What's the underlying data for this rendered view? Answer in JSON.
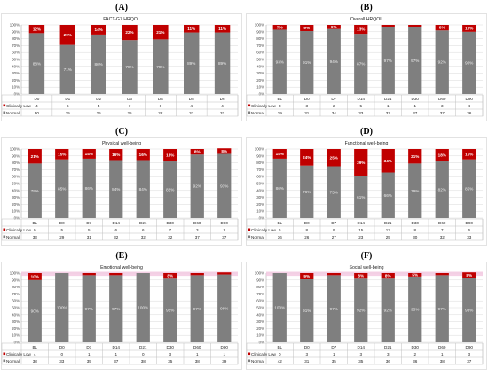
{
  "colors": {
    "clinically_low": "#c00000",
    "normal": "#7f7f7f",
    "highlight": "#f2c5e0"
  },
  "legend": {
    "low": "Clinically Low",
    "normal": "Normal"
  },
  "chart_data": [
    {
      "letter": "(A)",
      "title": "FACT-G7 HRQOL",
      "type": "bar",
      "stacked": true,
      "ylim": [
        0,
        100
      ],
      "y_unit": "%",
      "yticks": [
        "0%",
        "10%",
        "20%",
        "30%",
        "40%",
        "50%",
        "60%",
        "70%",
        "80%",
        "90%",
        "100%"
      ],
      "categories": [
        "D0",
        "D1",
        "D2",
        "D3",
        "D4",
        "D5",
        "D6"
      ],
      "series": [
        {
          "name": "Clinically Low",
          "values": [
            12,
            29,
            14,
            22,
            21,
            11,
            11
          ],
          "labels": [
            "12%",
            "29%",
            "14%",
            "22%",
            "21%",
            "11%",
            "11%"
          ],
          "counts": [
            4,
            6,
            4,
            7,
            6,
            4,
            4
          ]
        },
        {
          "name": "Normal",
          "values": [
            88,
            71,
            86,
            78,
            79,
            89,
            89
          ],
          "labels": [
            "88%",
            "71%",
            "86%",
            "78%",
            "79%",
            "89%",
            "89%"
          ],
          "counts": [
            30,
            15,
            25,
            25,
            22,
            31,
            32
          ]
        }
      ]
    },
    {
      "letter": "(B)",
      "title": "Overall HRQOL",
      "type": "bar",
      "stacked": true,
      "ylim": [
        0,
        100
      ],
      "y_unit": "%",
      "yticks": [
        "0%",
        "10%",
        "20%",
        "30%",
        "40%",
        "50%",
        "60%",
        "70%",
        "80%",
        "90%",
        "100%"
      ],
      "categories": [
        "BL",
        "D0",
        "D7",
        "D14",
        "D21",
        "D30",
        "D60",
        "D90"
      ],
      "series": [
        {
          "name": "Clinically Low",
          "values": [
            7,
            9,
            6,
            13,
            3,
            3,
            8,
            10
          ],
          "labels": [
            "7%",
            "9%",
            "6%",
            "13%",
            "",
            "",
            "8%",
            "10%"
          ],
          "counts": [
            3,
            3,
            2,
            5,
            1,
            1,
            3,
            4
          ]
        },
        {
          "name": "Normal",
          "values": [
            93,
            91,
            94,
            87,
            97,
            97,
            92,
            90
          ],
          "labels": [
            "93%",
            "91%",
            "94%",
            "87%",
            "97%",
            "97%",
            "92%",
            "90%"
          ],
          "counts": [
            39,
            31,
            34,
            33,
            37,
            37,
            37,
            36
          ]
        }
      ]
    },
    {
      "letter": "(C)",
      "title": "Physical well-being",
      "type": "bar",
      "stacked": true,
      "ylim": [
        0,
        100
      ],
      "y_unit": "%",
      "yticks": [
        "0%",
        "10%",
        "20%",
        "30%",
        "40%",
        "50%",
        "60%",
        "70%",
        "80%",
        "90%",
        "100%"
      ],
      "categories": [
        "BL",
        "D0",
        "D7",
        "D14",
        "D21",
        "D30",
        "D60",
        "D90"
      ],
      "series": [
        {
          "name": "Clinically Low",
          "values": [
            21,
            15,
            14,
            16,
            16,
            18,
            8,
            8
          ],
          "labels": [
            "21%",
            "15%",
            "14%",
            "16%",
            "16%",
            "18%",
            "8%",
            "8%"
          ],
          "counts": [
            9,
            5,
            5,
            6,
            6,
            7,
            3,
            3
          ]
        },
        {
          "name": "Normal",
          "values": [
            79,
            85,
            86,
            84,
            84,
            82,
            92,
            93
          ],
          "labels": [
            "79%",
            "85%",
            "86%",
            "84%",
            "84%",
            "82%",
            "92%",
            "93%"
          ],
          "counts": [
            33,
            29,
            31,
            32,
            32,
            32,
            37,
            37
          ]
        }
      ]
    },
    {
      "letter": "(D)",
      "title": "Functional well-being",
      "type": "bar",
      "stacked": true,
      "ylim": [
        0,
        100
      ],
      "y_unit": "%",
      "yticks": [
        "0%",
        "10%",
        "20%",
        "30%",
        "40%",
        "50%",
        "60%",
        "70%",
        "80%",
        "90%",
        "100%"
      ],
      "categories": [
        "BL",
        "D0",
        "D7",
        "D14",
        "D21",
        "D30",
        "D60",
        "D90"
      ],
      "series": [
        {
          "name": "Clinically Low",
          "values": [
            14,
            24,
            25,
            39,
            34,
            21,
            18,
            15
          ],
          "labels": [
            "14%",
            "24%",
            "25%",
            "39%",
            "34%",
            "21%",
            "18%",
            "15%"
          ],
          "counts": [
            6,
            8,
            9,
            15,
            13,
            8,
            7,
            6
          ]
        },
        {
          "name": "Normal",
          "values": [
            86,
            76,
            75,
            61,
            66,
            79,
            82,
            85
          ],
          "labels": [
            "86%",
            "76%",
            "75%",
            "61%",
            "66%",
            "79%",
            "82%",
            "85%"
          ],
          "counts": [
            36,
            26,
            27,
            23,
            25,
            30,
            32,
            33
          ]
        }
      ]
    },
    {
      "letter": "(E)",
      "title": "Emotional well-being",
      "type": "bar",
      "stacked": true,
      "ylim": [
        0,
        100
      ],
      "y_unit": "%",
      "yticks": [
        "0%",
        "10%",
        "20%",
        "30%",
        "40%",
        "50%",
        "60%",
        "70%",
        "80%",
        "90%",
        "100%"
      ],
      "categories": [
        "BL",
        "D0",
        "D7",
        "D14",
        "D21",
        "D30",
        "D60",
        "D90"
      ],
      "series": [
        {
          "name": "Clinically Low",
          "values": [
            10,
            0,
            3,
            3,
            0,
            8,
            3,
            3
          ],
          "labels": [
            "10%",
            "",
            "",
            "",
            "",
            "8%",
            "",
            ""
          ],
          "counts": [
            4,
            0,
            1,
            1,
            0,
            3,
            1,
            1
          ]
        },
        {
          "name": "Normal",
          "values": [
            90,
            100,
            97,
            97,
            100,
            92,
            97,
            98
          ],
          "labels": [
            "90%",
            "100%",
            "97%",
            "97%",
            "100%",
            "92%",
            "97%",
            "98%"
          ],
          "counts": [
            38,
            33,
            35,
            37,
            38,
            35,
            38,
            39
          ]
        }
      ]
    },
    {
      "letter": "(F)",
      "title": "Social well-being",
      "type": "bar",
      "stacked": true,
      "ylim": [
        0,
        100
      ],
      "y_unit": "%",
      "yticks": [
        "0%",
        "10%",
        "20%",
        "30%",
        "40%",
        "50%",
        "60%",
        "70%",
        "80%",
        "90%",
        "100%"
      ],
      "categories": [
        "BL",
        "D0",
        "D7",
        "D14",
        "D21",
        "D30",
        "D60",
        "D90"
      ],
      "series": [
        {
          "name": "Clinically Low",
          "values": [
            0,
            9,
            3,
            8,
            8,
            5,
            3,
            8
          ],
          "labels": [
            "",
            "9%",
            "",
            "8%",
            "8%",
            "5%",
            "",
            "8%"
          ],
          "counts": [
            0,
            3,
            1,
            3,
            3,
            2,
            1,
            3
          ]
        },
        {
          "name": "Normal",
          "values": [
            100,
            91,
            97,
            92,
            92,
            95,
            97,
            93
          ],
          "labels": [
            "100%",
            "91%",
            "97%",
            "92%",
            "92%",
            "95%",
            "97%",
            "93%"
          ],
          "counts": [
            42,
            31,
            35,
            35,
            36,
            36,
            38,
            37
          ]
        }
      ]
    }
  ]
}
